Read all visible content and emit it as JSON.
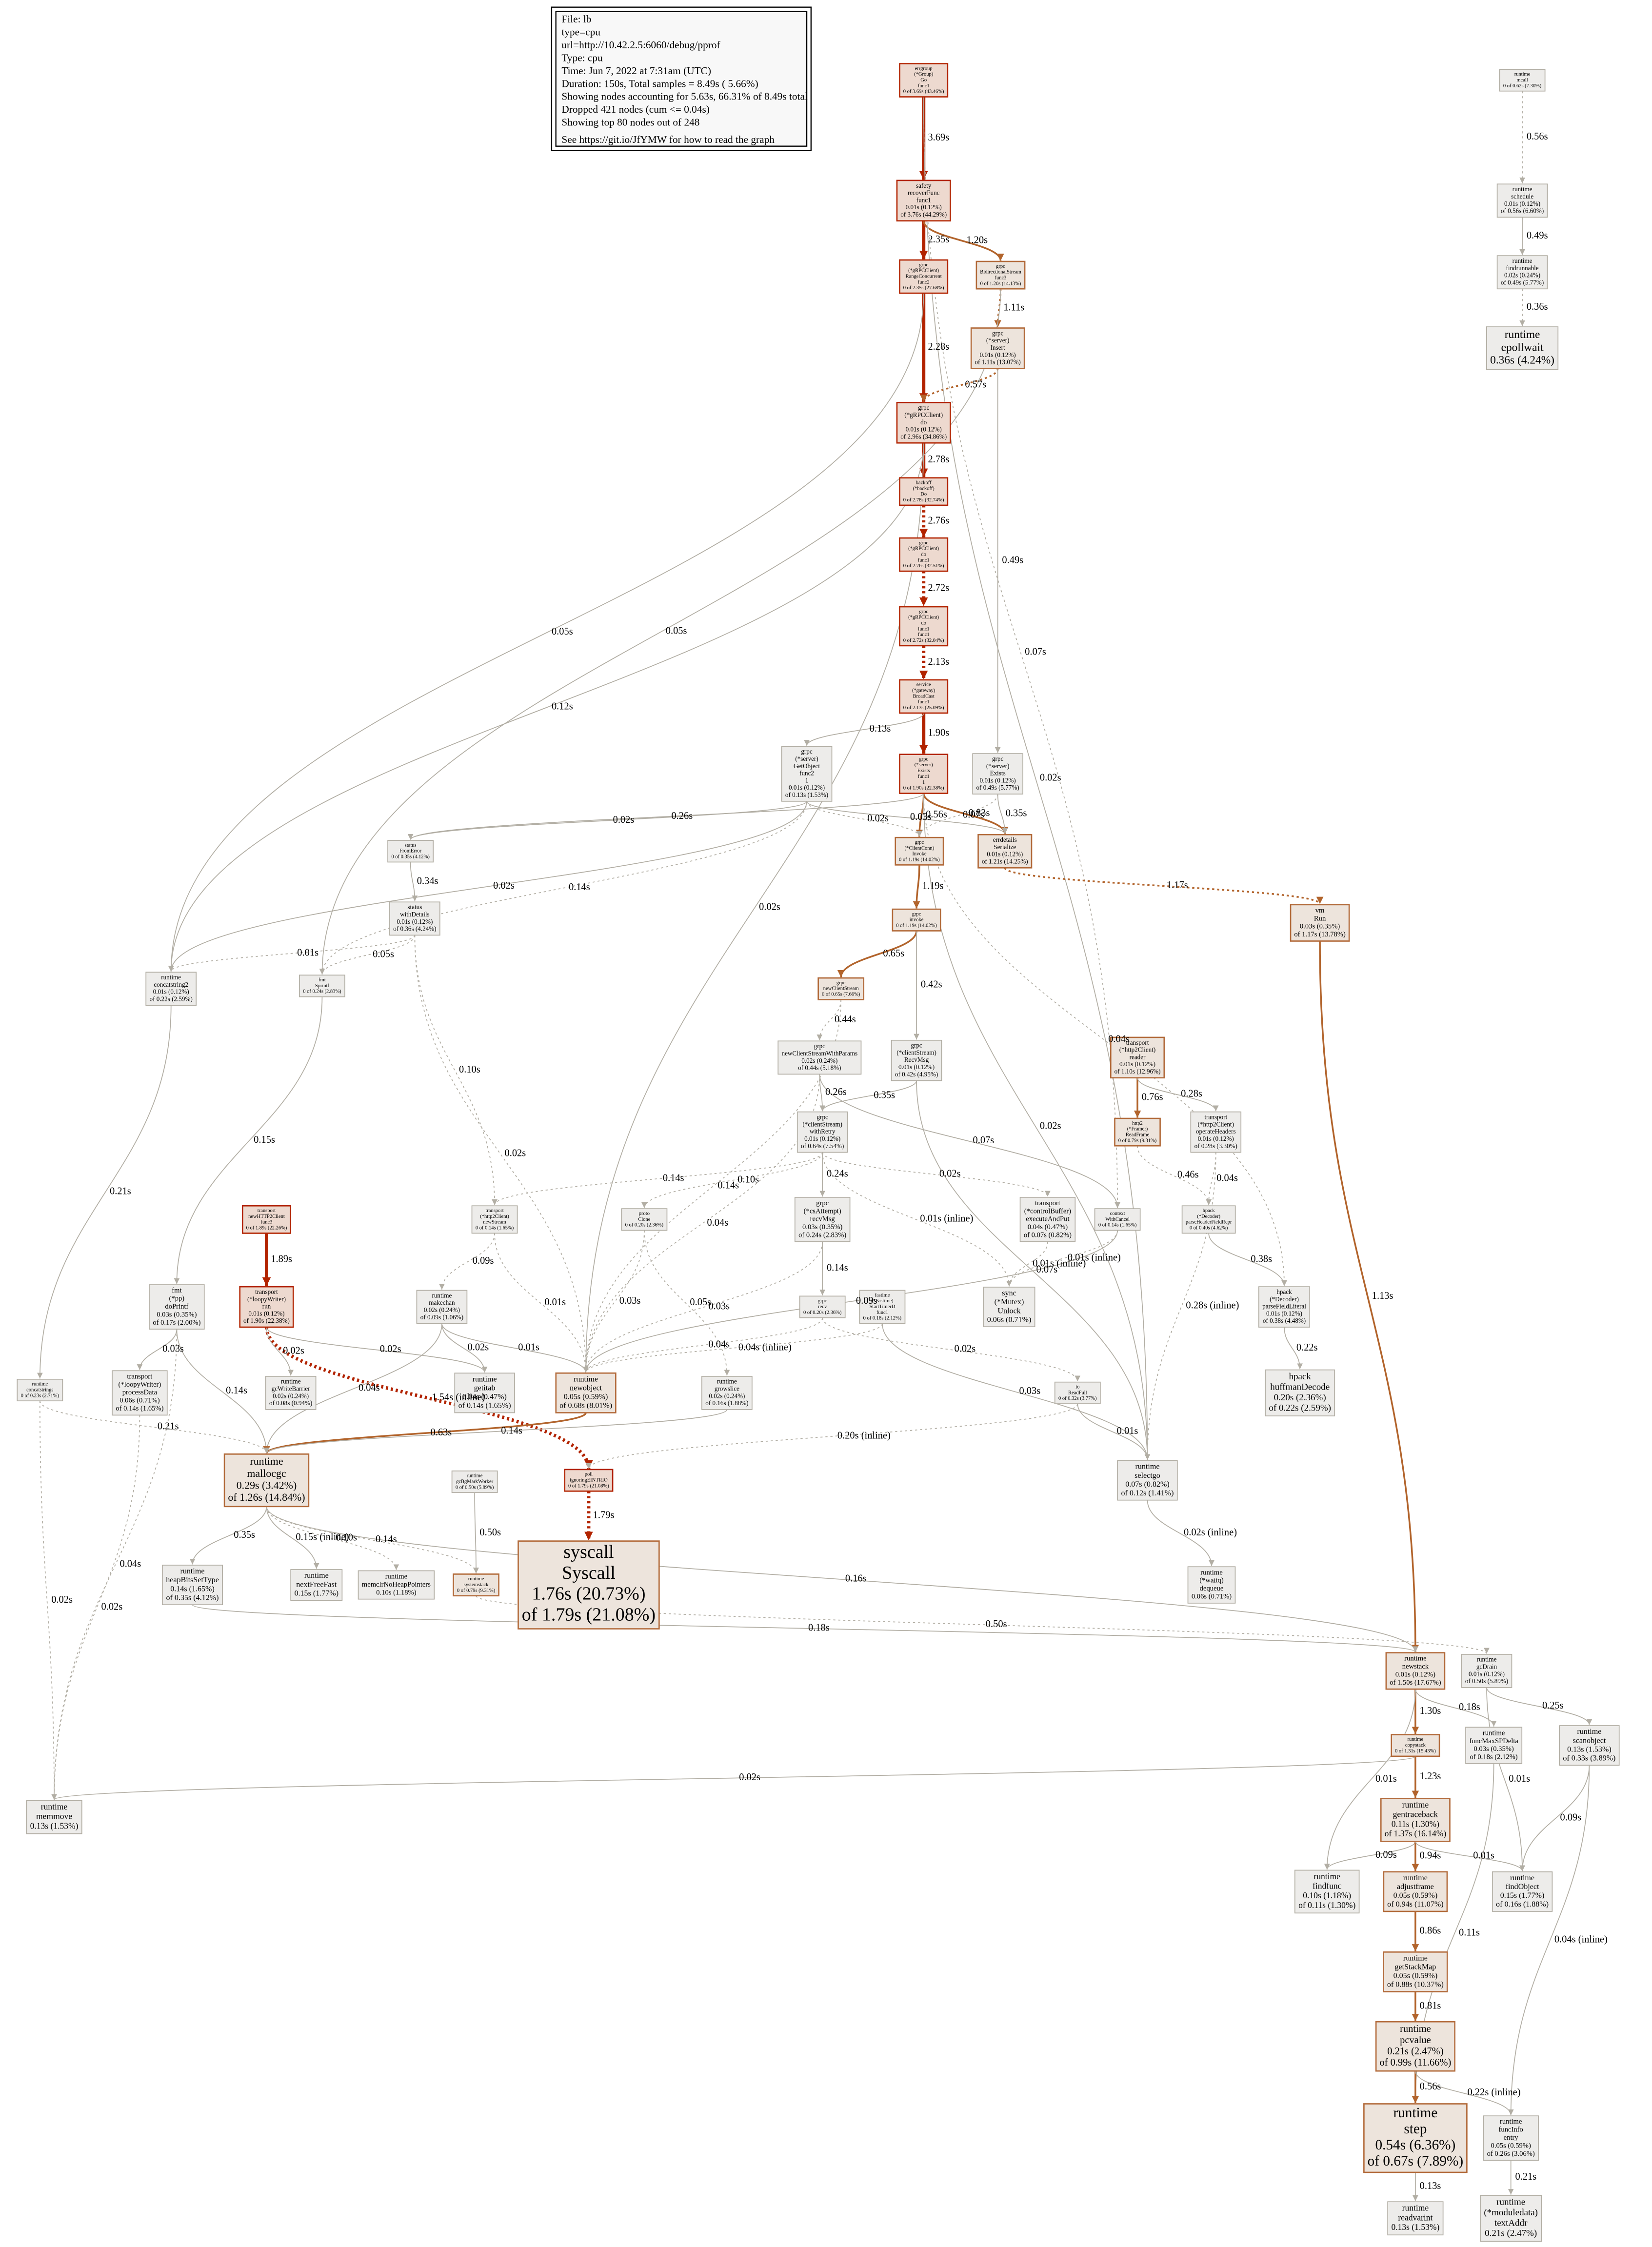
{
  "legend": [
    "File: lb",
    "type=cpu",
    "url=http://10.42.2.5:6060/debug/pprof",
    "Type: cpu",
    "Time: Jun 7, 2022 at 7:31am (UTC)",
    "Duration: 150s, Total samples = 8.49s ( 5.66%)",
    "Showing nodes accounting for 5.63s, 66.31% of 8.49s total",
    "Dropped 421 nodes (cum <= 0.04s)",
    "Showing top 80 nodes out of 248",
    "See https://git.io/JfYMW for how to read the graph"
  ],
  "nodes": [
    [
      "errgroup",
      "(*Group)",
      "Go",
      "func1",
      "0 of 3.69s (43.46%)"
    ],
    [
      "safety",
      "recoverFunc",
      "func1",
      "0.01s (0.12%)",
      "of 3.76s (44.29%)"
    ],
    [
      "grpc",
      "(*gRPCClient)",
      "RangeConcurrent",
      "func2",
      "0 of 2.35s (27.68%)"
    ],
    [
      "grpc",
      "BidirectionalStream",
      "func3",
      "0 of 1.20s (14.13%)"
    ],
    [
      "grpc",
      "(*server)",
      "Insert",
      "0.01s (0.12%)",
      "of 1.11s (13.07%)"
    ],
    [
      "grpc",
      "(*gRPCClient)",
      "do",
      "0.01s (0.12%)",
      "of 2.96s (34.86%)"
    ],
    [
      "backoff",
      "(*backoff)",
      "Do",
      "0 of 2.78s (32.74%)"
    ],
    [
      "grpc",
      "(*gRPCClient)",
      "do",
      "func1",
      "0 of 2.76s (32.51%)"
    ],
    [
      "grpc",
      "(*gRPCClient)",
      "do",
      "func1",
      "func1",
      "0 of 2.72s (32.04%)"
    ],
    [
      "service",
      "(*gateway)",
      "BroadCast",
      "func1",
      "0 of 2.13s (25.09%)"
    ],
    [
      "grpc",
      "(*server)",
      "Exists",
      "0.01s (0.12%)",
      "of 0.49s (5.77%)"
    ],
    [
      "grpc",
      "(*server)",
      "GetObject",
      "func2",
      "1",
      "0.01s (0.12%)",
      "of 0.13s (1.53%)"
    ],
    [
      "grpc",
      "(*server)",
      "Exists",
      "func1",
      "1",
      "0 of 1.90s (22.38%)"
    ],
    [
      "status",
      "FromError",
      "0 of 0.35s (4.12%)"
    ],
    [
      "grpc",
      "(*ClientConn)",
      "Invoke",
      "0 of 1.19s (14.02%)"
    ],
    [
      "errdetails",
      "Serialize",
      "0.01s (0.12%)",
      "of 1.21s (14.25%)"
    ],
    [
      "vm",
      "Run",
      "0.03s (0.35%)",
      "of 1.17s (13.78%)"
    ],
    [
      "status",
      "withDetails",
      "0.01s (0.12%)",
      "of 0.36s (4.24%)"
    ],
    [
      "grpc",
      "invoke",
      "0 of 1.19s (14.02%)"
    ],
    [
      "runtime",
      "concatstring2",
      "0.01s (0.12%)",
      "of 0.22s (2.59%)"
    ],
    [
      "fmt",
      "Sprintf",
      "0 of 0.24s (2.83%)"
    ],
    [
      "grpc",
      "newClientStream",
      "0 of 0.65s (7.66%)"
    ],
    [
      "grpc",
      "newClientStreamWithParams",
      "0.02s (0.24%)",
      "of 0.44s (5.18%)"
    ],
    [
      "grpc",
      "(*clientStream)",
      "RecvMsg",
      "0.01s (0.12%)",
      "of 0.42s (4.95%)"
    ],
    [
      "transport",
      "(*http2Client)",
      "reader",
      "0.01s (0.12%)",
      "of 1.10s (12.96%)"
    ],
    [
      "grpc",
      "(*clientStream)",
      "withRetry",
      "0.01s (0.12%)",
      "of 0.64s (7.54%)"
    ],
    [
      "http2",
      "(*Framer)",
      "ReadFrame",
      "0 of 0.79s (9.31%)"
    ],
    [
      "transport",
      "(*http2Client)",
      "operateHeaders",
      "0.01s (0.12%)",
      "of 0.28s (3.30%)"
    ],
    [
      "transport",
      "newHTTP2Client",
      "func3",
      "0 of 1.89s (22.26%)"
    ],
    [
      "transport",
      "(*http2Client)",
      "newStream",
      "0 of 0.14s (1.65%)"
    ],
    [
      "proto",
      "Clone",
      "0 of 0.20s (2.36%)"
    ],
    [
      "grpc",
      "(*csAttempt)",
      "recvMsg",
      "0.03s (0.35%)",
      "of 0.24s (2.83%)"
    ],
    [
      "transport",
      "(*controlBuffer)",
      "executeAndPut",
      "0.04s (0.47%)",
      "of 0.07s (0.82%)"
    ],
    [
      "context",
      "WithCancel",
      "0 of 0.14s (1.65%)"
    ],
    [
      "hpack",
      "(*Decoder)",
      "parseHeaderFieldRepr",
      "0 of 0.40s (4.62%)"
    ],
    [
      "fmt",
      "(*pp)",
      "doPrintf",
      "0.03s (0.35%)",
      "of 0.17s (2.00%)"
    ],
    [
      "transport",
      "(*loopyWriter)",
      "run",
      "0.01s (0.12%)",
      "of 1.90s (22.38%)"
    ],
    [
      "runtime",
      "makechan",
      "0.02s (0.24%)",
      "of 0.09s (1.06%)"
    ],
    [
      "grpc",
      "recv",
      "0 of 0.20s (2.36%)"
    ],
    [
      "fastime",
      "(*Fastime)",
      "StartTimerD",
      "func1",
      "0 of 0.18s (2.12%)"
    ],
    [
      "sync",
      "(*Mutex)",
      "Unlock",
      "0.06s (0.71%)"
    ],
    [
      "hpack",
      "(*Decoder)",
      "parseFieldLiteral",
      "0.01s (0.12%)",
      "of 0.38s (4.48%)"
    ],
    [
      "runtime",
      "concatstrings",
      "0 of 0.23s (2.71%)"
    ],
    [
      "transport",
      "(*loopyWriter)",
      "processData",
      "0.06s (0.71%)",
      "of 0.14s (1.65%)"
    ],
    [
      "runtime",
      "gcWriteBarrier",
      "0.02s (0.24%)",
      "of 0.08s (0.94%)"
    ],
    [
      "runtime",
      "getitab",
      "0.04s (0.47%)",
      "of 0.14s (1.65%)"
    ],
    [
      "runtime",
      "newobject",
      "0.05s (0.59%)",
      "of 0.68s (8.01%)"
    ],
    [
      "runtime",
      "growslice",
      "0.02s (0.24%)",
      "of 0.16s (1.88%)"
    ],
    [
      "io",
      "ReadFull",
      "0 of 0.32s (3.77%)"
    ],
    [
      "hpack",
      "huffmanDecode",
      "0.20s (2.36%)",
      "of 0.22s (2.59%)"
    ],
    [
      "runtime",
      "mallocgc",
      "0.29s (3.42%)",
      "of 1.26s (14.84%)"
    ],
    [
      "runtime",
      "gcBgMarkWorker",
      "0 of 0.50s (5.89%)"
    ],
    [
      "poll",
      "ignoringEINTRIO",
      "0 of 1.79s (21.08%)"
    ],
    [
      "runtime",
      "selectgo",
      "0.07s (0.82%)",
      "of 0.12s (1.41%)"
    ],
    [
      "runtime",
      "heapBitsSetType",
      "0.14s (1.65%)",
      "of 0.35s (4.12%)"
    ],
    [
      "runtime",
      "nextFreeFast",
      "0.15s (1.77%)"
    ],
    [
      "runtime",
      "memclrNoHeapPointers",
      "0.10s (1.18%)"
    ],
    [
      "runtime",
      "systemstack",
      "0 of 0.79s (9.31%)"
    ],
    [
      "syscall",
      "Syscall",
      "1.76s (20.73%)",
      "of 1.79s (21.08%)"
    ],
    [
      "runtime",
      "(*waitq)",
      "dequeue",
      "0.06s (0.71%)"
    ],
    [
      "runtime",
      "newstack",
      "0.01s (0.12%)",
      "of 1.50s (17.67%)"
    ],
    [
      "runtime",
      "gcDrain",
      "0.01s (0.12%)",
      "of 0.50s (5.89%)"
    ],
    [
      "runtime",
      "copystack",
      "0 of 1.31s (15.43%)"
    ],
    [
      "runtime",
      "funcMaxSPDelta",
      "0.03s (0.35%)",
      "of 0.18s (2.12%)"
    ],
    [
      "runtime",
      "scanobject",
      "0.13s (1.53%)",
      "of 0.33s (3.89%)"
    ],
    [
      "runtime",
      "memmove",
      "0.13s (1.53%)"
    ],
    [
      "runtime",
      "gentraceback",
      "0.11s (1.30%)",
      "of 1.37s (16.14%)"
    ],
    [
      "runtime",
      "findfunc",
      "0.10s (1.18%)",
      "of 0.11s (1.30%)"
    ],
    [
      "runtime",
      "adjustframe",
      "0.05s (0.59%)",
      "of 0.94s (11.07%)"
    ],
    [
      "runtime",
      "findObject",
      "0.15s (1.77%)",
      "of 0.16s (1.88%)"
    ],
    [
      "runtime",
      "getStackMap",
      "0.05s (0.59%)",
      "of 0.88s (10.37%)"
    ],
    [
      "runtime",
      "pcvalue",
      "0.21s (2.47%)",
      "of 0.99s (11.66%)"
    ],
    [
      "runtime",
      "step",
      "0.54s (6.36%)",
      "of 0.67s (7.89%)"
    ],
    [
      "runtime",
      "funcInfo",
      "entry",
      "0.05s (0.59%)",
      "of 0.26s (3.06%)"
    ],
    [
      "runtime",
      "readvarint",
      "0.13s (1.53%)"
    ],
    [
      "runtime",
      "(*moduledata)",
      "textAddr",
      "0.21s (2.47%)"
    ],
    [
      "runtime",
      "mcall",
      "0 of 0.62s (7.30%)"
    ],
    [
      "runtime",
      "schedule",
      "0.01s (0.12%)",
      "of 0.56s (6.60%)"
    ],
    [
      "runtime",
      "findrunnable",
      "0.02s (0.24%)",
      "of 0.49s (5.77%)"
    ],
    [
      "runtime",
      "epollwait",
      "0.36s (4.24%)"
    ]
  ],
  "edges": [
    "3.69s",
    "2.35s",
    "1.20s",
    "1.11s",
    "2.28s",
    "0.57s",
    "2.78s",
    "2.76s",
    "2.72s",
    "2.13s",
    "1.90s",
    "0.13s",
    "0.49s",
    "0.56s",
    "0.49s",
    "0.36s",
    "0.05s",
    "0.12s",
    "0.02s",
    "0.05s",
    "0.02s",
    "0.07s",
    "0.02s",
    "0.02s",
    "0.03s",
    "0.26s",
    "0.02s",
    "0.56s",
    "0.07s",
    "0.83s",
    "0.35s",
    "1.17s",
    "1.19s",
    "0.34s",
    "0.01s",
    "0.05s",
    "0.14s",
    "0.65s",
    "0.42s",
    "0.44s",
    "0.26s",
    "0.35s",
    "0.76s",
    "0.28s",
    "1.13s",
    "0.21s",
    "0.15s",
    "0.10s",
    "0.02s",
    "0.14s",
    "0.14s",
    "0.10s",
    "0.24s",
    "0.02s",
    "0.07s",
    "0.01s (inline)",
    "0.46s",
    "0.04s",
    "0.04s",
    "1.89s",
    "0.09s",
    "0.01s",
    "0.05s",
    "0.03s",
    "0.14s",
    "0.03s",
    "0.01s (inline)",
    "0.01s (inline)",
    "0.09s",
    "0.38s",
    "0.28s (inline)",
    "0.22s",
    "0.14s",
    "0.03s",
    "1.54s (inline)",
    "0.02s",
    "0.02s",
    "0.04s",
    "0.01s",
    "0.02s",
    "0.04s",
    "0.02s",
    "0.03s",
    "0.04s (inline)",
    "0.20s (inline)",
    "0.01s",
    "0.02s (inline)",
    "0.63s",
    "0.14s",
    "0.02s",
    "0.21s",
    "0.35s",
    "0.15s (inline)",
    "0.10s",
    "0.14s",
    "0.16s",
    "0.04s",
    "0.02s",
    "0.50s",
    "1.79s",
    "0.18s",
    "0.50s",
    "1.30s",
    "0.18s",
    "0.01s",
    "0.25s",
    "0.01s",
    "1.23s",
    "0.02s",
    "0.11s",
    "0.04s (inline)",
    "0.09s",
    "0.09s",
    "0.94s",
    "0.01s",
    "0.86s",
    "0.81s",
    "0.56s",
    "0.22s (inline)",
    "0.13s",
    "0.21s",
    "0.07s",
    "0.02s",
    "0.04s"
  ]
}
